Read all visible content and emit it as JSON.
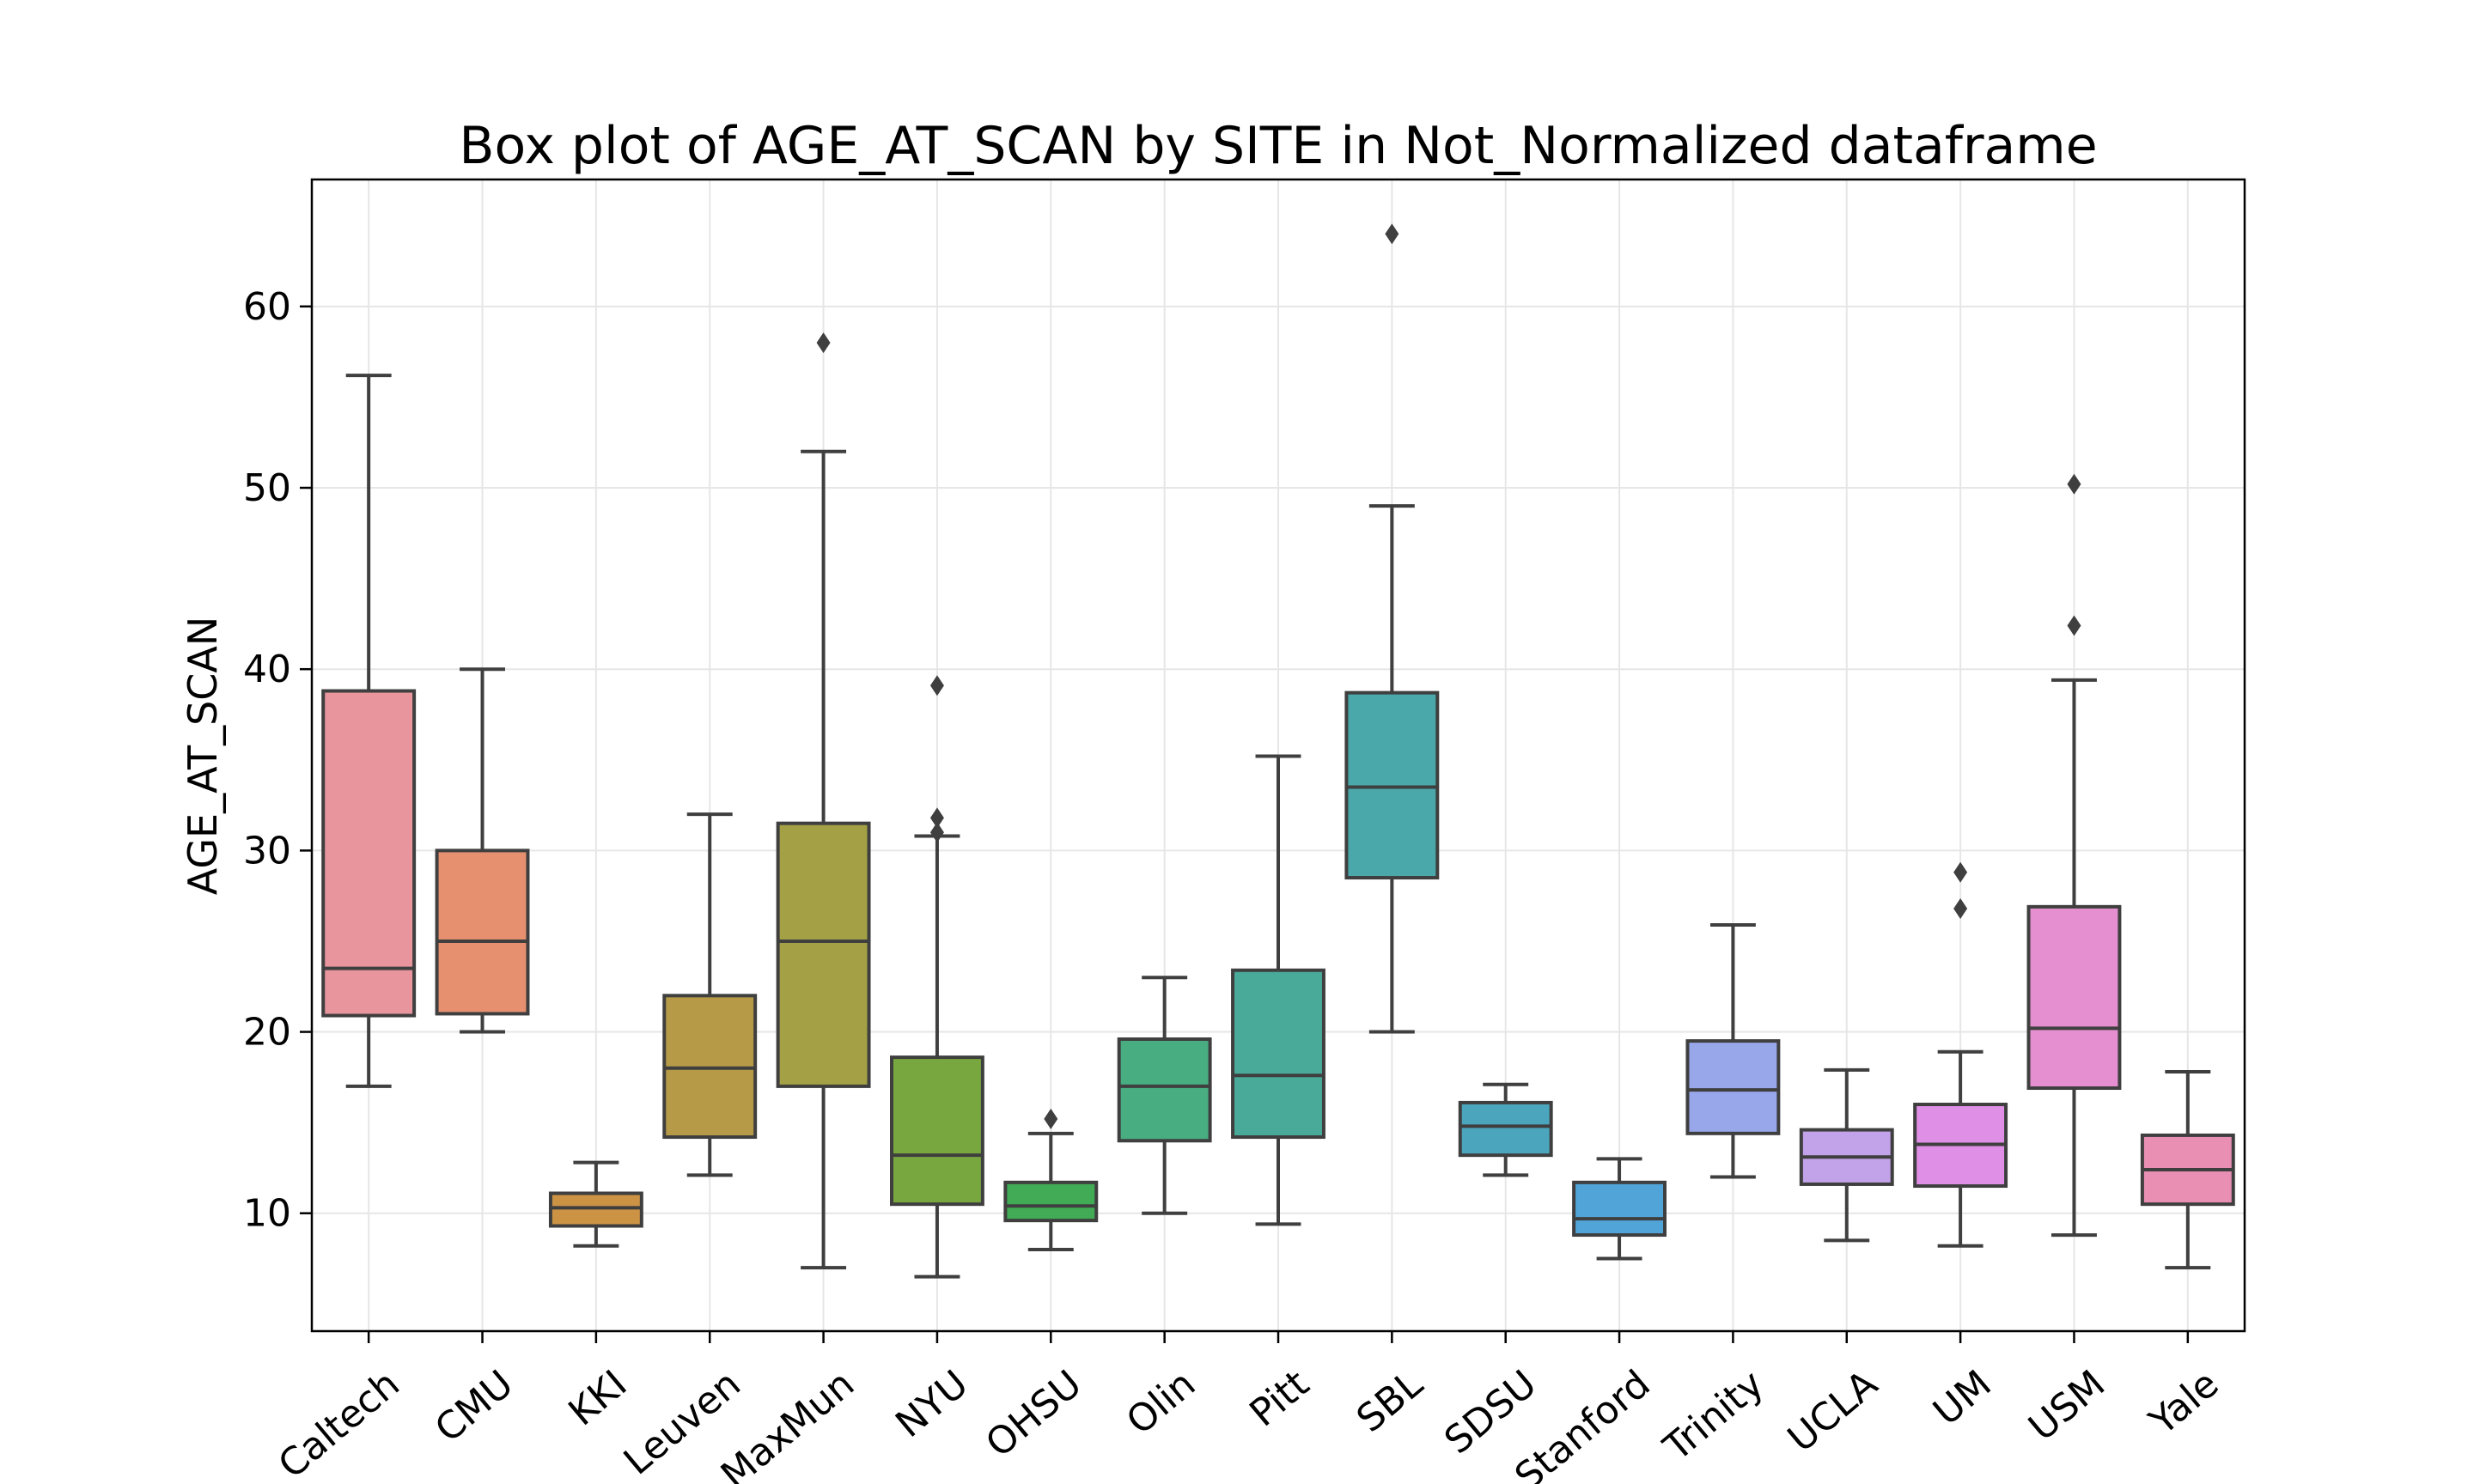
{
  "chart_data": {
    "type": "box",
    "title": "Box plot of AGE_AT_SCAN by SITE in Not_Normalized dataframe",
    "xlabel": "",
    "ylabel": "AGE_AT_SCAN",
    "ylim": [
      3.5,
      67
    ],
    "yticks": [
      10,
      20,
      30,
      40,
      50,
      60
    ],
    "grid": true,
    "categories": [
      "Caltech",
      "CMU",
      "KKI",
      "Leuven",
      "MaxMun",
      "NYU",
      "OHSU",
      "Olin",
      "Pitt",
      "SBL",
      "SDSU",
      "Stanford",
      "Trinity",
      "UCLA",
      "UM",
      "USM",
      "Yale"
    ],
    "boxes": [
      {
        "site": "Caltech",
        "color": "#e8959e",
        "whisker_low": 17.0,
        "q1": 20.9,
        "median": 23.5,
        "q3": 38.8,
        "whisker_high": 56.2,
        "fliers": []
      },
      {
        "site": "CMU",
        "color": "#e6906f",
        "whisker_low": 20.0,
        "q1": 21.0,
        "median": 25.0,
        "q3": 30.0,
        "whisker_high": 40.0,
        "fliers": []
      },
      {
        "site": "KKI",
        "color": "#cd9345",
        "whisker_low": 8.2,
        "q1": 9.3,
        "median": 10.3,
        "q3": 11.1,
        "whisker_high": 12.8,
        "fliers": []
      },
      {
        "site": "Leuven",
        "color": "#b79a48",
        "whisker_low": 12.1,
        "q1": 14.2,
        "median": 18.0,
        "q3": 22.0,
        "whisker_high": 32.0,
        "fliers": []
      },
      {
        "site": "MaxMun",
        "color": "#a3a045",
        "whisker_low": 7.0,
        "q1": 17.0,
        "median": 25.0,
        "q3": 31.5,
        "whisker_high": 52.0,
        "fliers": [
          58.0
        ]
      },
      {
        "site": "NYU",
        "color": "#79a73f",
        "whisker_low": 6.5,
        "q1": 10.5,
        "median": 13.2,
        "q3": 18.6,
        "whisker_high": 30.8,
        "fliers": [
          31.0,
          31.8,
          39.1
        ]
      },
      {
        "site": "OHSU",
        "color": "#41ab56",
        "whisker_low": 8.0,
        "q1": 9.6,
        "median": 10.4,
        "q3": 11.7,
        "whisker_high": 14.4,
        "fliers": [
          15.2
        ]
      },
      {
        "site": "Olin",
        "color": "#48ad80",
        "whisker_low": 10.0,
        "q1": 14.0,
        "median": 17.0,
        "q3": 19.6,
        "whisker_high": 23.0,
        "fliers": []
      },
      {
        "site": "Pitt",
        "color": "#4aaa99",
        "whisker_low": 9.4,
        "q1": 14.2,
        "median": 17.6,
        "q3": 23.4,
        "whisker_high": 35.2,
        "fliers": []
      },
      {
        "site": "SBL",
        "color": "#4aa8aa",
        "whisker_low": 20.0,
        "q1": 28.5,
        "median": 33.5,
        "q3": 38.7,
        "whisker_high": 49.0,
        "fliers": [
          64.0
        ]
      },
      {
        "site": "SDSU",
        "color": "#4ba6bd",
        "whisker_low": 12.1,
        "q1": 13.2,
        "median": 14.8,
        "q3": 16.1,
        "whisker_high": 17.1,
        "fliers": []
      },
      {
        "site": "Stanford",
        "color": "#51a4d8",
        "whisker_low": 7.5,
        "q1": 8.8,
        "median": 9.7,
        "q3": 11.7,
        "whisker_high": 13.0,
        "fliers": []
      },
      {
        "site": "Trinity",
        "color": "#98a6ea",
        "whisker_low": 12.0,
        "q1": 14.4,
        "median": 16.8,
        "q3": 19.5,
        "whisker_high": 25.9,
        "fliers": []
      },
      {
        "site": "UCLA",
        "color": "#c2a2e8",
        "whisker_low": 8.5,
        "q1": 11.6,
        "median": 13.1,
        "q3": 14.6,
        "whisker_high": 17.9,
        "fliers": []
      },
      {
        "site": "UM",
        "color": "#df8fe6",
        "whisker_low": 8.2,
        "q1": 11.5,
        "median": 13.8,
        "q3": 16.0,
        "whisker_high": 18.9,
        "fliers": [
          26.8,
          28.8
        ]
      },
      {
        "site": "USM",
        "color": "#e68fd0",
        "whisker_low": 8.8,
        "q1": 16.9,
        "median": 20.2,
        "q3": 26.9,
        "whisker_high": 39.4,
        "fliers": [
          42.4,
          50.2
        ]
      },
      {
        "site": "Yale",
        "color": "#e88fb3",
        "whisker_low": 7.0,
        "q1": 10.5,
        "median": 12.4,
        "q3": 14.3,
        "whisker_high": 17.8,
        "fliers": []
      }
    ]
  }
}
